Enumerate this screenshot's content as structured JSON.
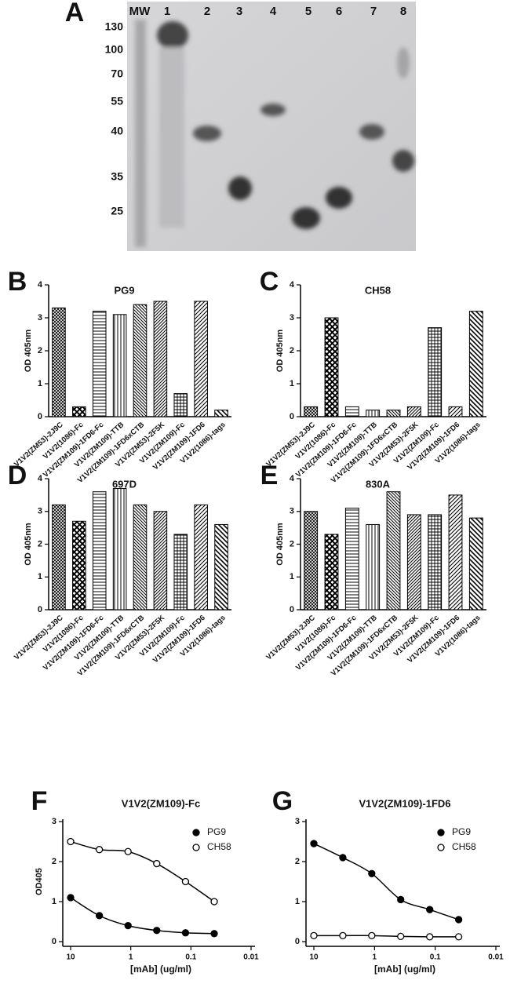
{
  "gel": {
    "label": "A",
    "header": "MW",
    "lanes": [
      "1",
      "2",
      "3",
      "4",
      "5",
      "6",
      "7",
      "8"
    ],
    "mw": [
      130,
      100,
      70,
      55,
      40,
      35,
      25
    ]
  },
  "chart_data": [
    {
      "panel": "B",
      "type": "bar",
      "title": "PG9",
      "y_label": "OD 405nm",
      "categories": [
        "V1V2(ZM53)-2J9C",
        "V1V2(1086)-Fc",
        "V1V2(ZM109)-1FD6-Fc",
        "V1V2(ZM109)-TTB",
        "V1V2(ZM109)-1FD6xCTB",
        "V1V2(ZM53)-2F5K",
        "V1V2(ZM109)-Fc",
        "V1V2(ZM109)-1FD6",
        "V1V2(1086)-tags"
      ],
      "values": [
        3.3,
        0.3,
        3.2,
        3.1,
        3.4,
        3.5,
        0.7,
        3.5,
        0.2
      ],
      "ylim": [
        0,
        4
      ],
      "yticks": [
        0,
        1,
        2,
        3,
        4
      ]
    },
    {
      "panel": "C",
      "type": "bar",
      "title": "CH58",
      "y_label": "OD 405nm",
      "categories": [
        "V1V2(ZM53)-2J9C",
        "V1V2(1086)-Fc",
        "V1V2(ZM109)-1FD6-Fc",
        "V1V2(ZM109)-TTB",
        "V1V2(ZM109)-1FD6xCTB",
        "V1V2(ZM53)-2F5K",
        "V1V2(ZM109)-Fc",
        "V1V2(ZM109)-1FD6",
        "V1V2(1086)-tags"
      ],
      "values": [
        0.3,
        3.0,
        0.3,
        0.2,
        0.2,
        0.3,
        2.7,
        0.3,
        3.2
      ],
      "ylim": [
        0,
        4
      ],
      "yticks": [
        0,
        1,
        2,
        3,
        4
      ]
    },
    {
      "panel": "D",
      "type": "bar",
      "title": "697D",
      "y_label": "OD 405nm",
      "categories": [
        "V1V2(ZM53)-2J9C",
        "V1V2(1086)-Fc",
        "V1V2(ZM109)-1FD6-Fc",
        "V1V2(ZM109)-TTB",
        "V1V2(ZM109)-1FD6xCTB",
        "V1V2(ZM53)-2F5K",
        "V1V2(ZM109)-Fc",
        "V1V2(ZM109)-1FD6",
        "V1V2(1086)-tags"
      ],
      "values": [
        3.2,
        2.7,
        3.6,
        3.7,
        3.2,
        3.0,
        2.3,
        3.2,
        2.6
      ],
      "ylim": [
        0,
        4
      ],
      "yticks": [
        0,
        1,
        2,
        3,
        4
      ]
    },
    {
      "panel": "E",
      "type": "bar",
      "title": "830A",
      "y_label": "OD 405nm",
      "categories": [
        "V1V2(ZM53)-2J9C",
        "V1V2(1086)-Fc",
        "V1V2(ZM109)-1FD6-Fc",
        "V1V2(ZM109)-TTB",
        "V1V2(ZM109)-1FD6xCTB",
        "V1V2(ZM53)-2F5K",
        "V1V2(ZM109)-Fc",
        "V1V2(ZM109)-1FD6",
        "V1V2(1086)-tags"
      ],
      "values": [
        3.0,
        2.3,
        3.1,
        2.6,
        3.6,
        2.9,
        2.9,
        3.5,
        2.8
      ],
      "ylim": [
        0,
        4
      ],
      "yticks": [
        0,
        1,
        2,
        3,
        4
      ]
    },
    {
      "panel": "F",
      "type": "line",
      "title": "V1V2(ZM109)-Fc",
      "y_label": "OD405",
      "x_label": "[mAb] (ug/ml)",
      "x_scale": "log",
      "x": [
        10,
        3.33,
        1.11,
        0.37,
        0.123,
        0.041
      ],
      "xlim": [
        10,
        0.01
      ],
      "xticks": [
        10,
        1,
        0.1,
        0.01
      ],
      "ylim": [
        0,
        3
      ],
      "yticks": [
        0,
        1,
        2,
        3
      ],
      "legend": "upper right",
      "series": [
        {
          "name": "PG9",
          "color": "#000000",
          "marker_fill": "#000000",
          "values": [
            1.1,
            0.65,
            0.4,
            0.28,
            0.22,
            0.2
          ]
        },
        {
          "name": "CH58",
          "color": "#000000",
          "marker_fill": "#ffffff",
          "values": [
            2.5,
            2.3,
            2.25,
            1.95,
            1.5,
            1.0
          ]
        }
      ]
    },
    {
      "panel": "G",
      "type": "line",
      "title": "V1V2(ZM109)-1FD6",
      "x_label": "[mAb] (ug/ml)",
      "x_scale": "log",
      "x": [
        10,
        3.33,
        1.11,
        0.37,
        0.123,
        0.041
      ],
      "xlim": [
        10,
        0.01
      ],
      "xticks": [
        10,
        1,
        0.1,
        0.01
      ],
      "ylim": [
        0,
        3
      ],
      "yticks": [
        0,
        1,
        2,
        3
      ],
      "legend": "upper right",
      "series": [
        {
          "name": "PG9",
          "color": "#000000",
          "marker_fill": "#000000",
          "values": [
            2.45,
            2.1,
            1.7,
            1.05,
            0.8,
            0.55
          ]
        },
        {
          "name": "CH58",
          "color": "#000000",
          "marker_fill": "#ffffff",
          "values": [
            0.15,
            0.15,
            0.15,
            0.13,
            0.12,
            0.12
          ]
        }
      ]
    }
  ]
}
